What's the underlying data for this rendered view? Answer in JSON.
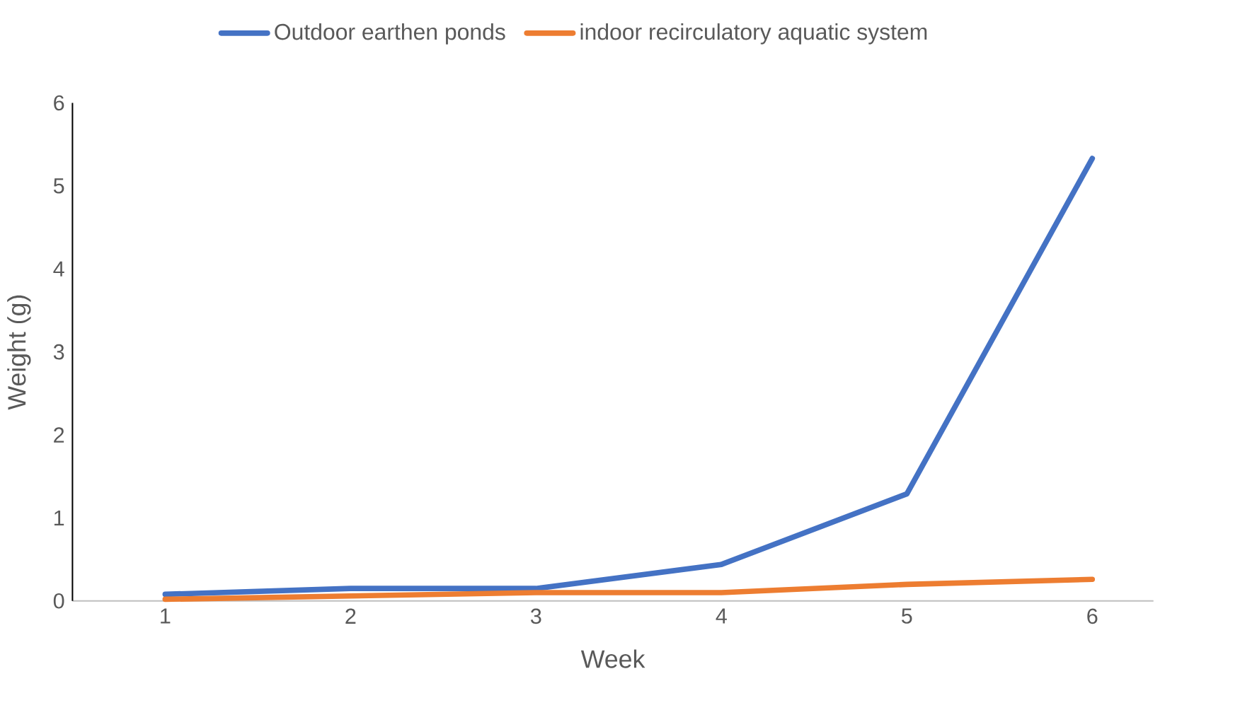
{
  "chart_data": {
    "type": "line",
    "xlabel": "Week",
    "ylabel": "Weight (g)",
    "categories": [
      "1",
      "2",
      "3",
      "4",
      "5",
      "6"
    ],
    "series": [
      {
        "name": "Outdoor earthen ponds",
        "color": "#4472c4",
        "values": [
          0.08,
          0.15,
          0.15,
          0.44,
          1.29,
          5.33
        ]
      },
      {
        "name": "indoor recirculatory aquatic system",
        "color": "#ed7d31",
        "values": [
          0.02,
          0.06,
          0.1,
          0.1,
          0.2,
          0.26
        ]
      }
    ],
    "ylim": [
      0,
      6
    ],
    "yticks": [
      0,
      1,
      2,
      3,
      4,
      5,
      6
    ],
    "grid": false,
    "legend": "top",
    "marker": "none",
    "line_style": "solid"
  }
}
